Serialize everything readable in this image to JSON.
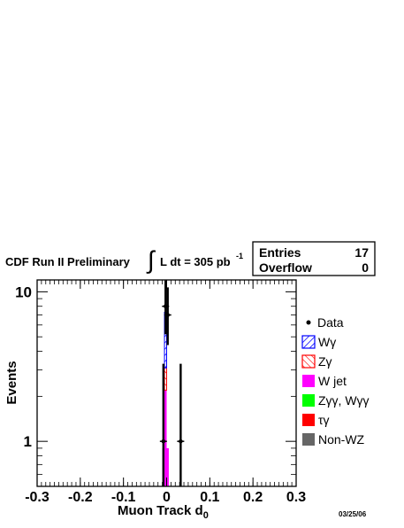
{
  "header": {
    "experiment": "CDF Run II Preliminary",
    "lumi_label": "L dt = 305 pb",
    "lumi_exp": "-1",
    "integral_symbol": "∫"
  },
  "stats": {
    "entries_label": "Entries",
    "entries_value": "17",
    "overflow_label": "Overflow",
    "overflow_value": "0"
  },
  "date": "03/25/06",
  "chart_data": {
    "type": "bar",
    "stacked": true,
    "title": "",
    "xlabel": "Muon Track d0",
    "xlabel_main": "Muon Track d",
    "xlabel_sub": "0",
    "ylabel": "Events",
    "xlim": [
      -0.3,
      0.3
    ],
    "ylim": [
      0.5,
      12
    ],
    "yscale": "log",
    "grid": false,
    "legend_position": "right",
    "x_ticks": [
      -0.3,
      -0.2,
      -0.1,
      0,
      0.1,
      0.2,
      0.3
    ],
    "x_tick_labels": [
      "-0.3",
      "-0.2",
      "-0.1",
      "0",
      "0.1",
      "0.2",
      "0.3"
    ],
    "y_ticks": [
      1,
      10
    ],
    "y_tick_labels": [
      "1",
      "10"
    ],
    "bins_left": [
      -0.01,
      -0.005,
      0.0
    ],
    "bin_width": 0.005,
    "series": [
      {
        "name": "Non-WZ",
        "label": "Non-WZ",
        "color": "#666666",
        "pattern": "solid",
        "values": [
          0,
          0,
          0
        ]
      },
      {
        "name": "τγ",
        "label": "τγ",
        "color": "#ff0000",
        "pattern": "solid",
        "values": [
          0,
          0,
          0
        ]
      },
      {
        "name": "Zγγ, Wγγ",
        "label": "Zγγ, Wγγ",
        "color": "#00ff00",
        "pattern": "solid",
        "values": [
          0,
          0,
          0
        ]
      },
      {
        "name": "W jet",
        "label": "W jet",
        "color": "#ff00ff",
        "pattern": "solid",
        "values": [
          0.9,
          2.2,
          0.9
        ]
      },
      {
        "name": "Zγ",
        "label": "Zγ",
        "color": "#ff0000",
        "pattern": "hatch-red",
        "values": [
          0,
          0.9,
          0
        ]
      },
      {
        "name": "Wγ",
        "label": "Wγ",
        "color": "#0000ff",
        "pattern": "hatch-blue",
        "values": [
          0,
          4.2,
          0
        ]
      }
    ],
    "data_points": [
      {
        "x": -0.0075,
        "y": 1,
        "err_low": 0.83,
        "err_high": 2.3
      },
      {
        "x": -0.0025,
        "y": 8,
        "err_low": 2.8,
        "err_high": 3.9
      },
      {
        "x": 0.0025,
        "y": 7,
        "err_low": 2.6,
        "err_high": 3.7
      },
      {
        "x": 0.0325,
        "y": 1,
        "err_low": 0.83,
        "err_high": 2.3
      }
    ],
    "legend": [
      {
        "label": "Data",
        "marker": "point"
      },
      {
        "label": "Wγ",
        "marker": "hatch-blue"
      },
      {
        "label": "Zγ",
        "marker": "hatch-red"
      },
      {
        "label": "W jet",
        "marker": "#ff00ff"
      },
      {
        "label": "Zγγ, Wγγ",
        "marker": "#00ff00"
      },
      {
        "label": "τγ",
        "marker": "#ff0000"
      },
      {
        "label": "Non-WZ",
        "marker": "#666666"
      }
    ]
  }
}
